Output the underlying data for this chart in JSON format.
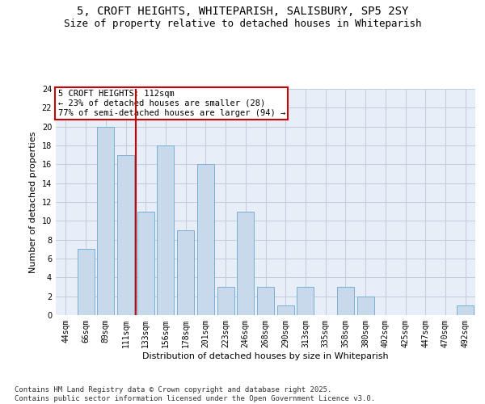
{
  "title": "5, CROFT HEIGHTS, WHITEPARISH, SALISBURY, SP5 2SY",
  "subtitle": "Size of property relative to detached houses in Whiteparish",
  "xlabel": "Distribution of detached houses by size in Whiteparish",
  "ylabel": "Number of detached properties",
  "categories": [
    "44sqm",
    "66sqm",
    "89sqm",
    "111sqm",
    "133sqm",
    "156sqm",
    "178sqm",
    "201sqm",
    "223sqm",
    "246sqm",
    "268sqm",
    "290sqm",
    "313sqm",
    "335sqm",
    "358sqm",
    "380sqm",
    "402sqm",
    "425sqm",
    "447sqm",
    "470sqm",
    "492sqm"
  ],
  "values": [
    0,
    7,
    20,
    17,
    11,
    18,
    9,
    16,
    3,
    11,
    3,
    1,
    3,
    0,
    3,
    2,
    0,
    0,
    0,
    0,
    1
  ],
  "bar_color": "#c8d9ec",
  "bar_edge_color": "#7aafd4",
  "grid_color": "#c0ccdd",
  "background_color": "#e8eef8",
  "annotation_box_text": "5 CROFT HEIGHTS: 112sqm\n← 23% of detached houses are smaller (28)\n77% of semi-detached houses are larger (94) →",
  "annotation_box_color": "#cc0000",
  "redline_x": 3.5,
  "ylim": [
    0,
    24
  ],
  "yticks": [
    0,
    2,
    4,
    6,
    8,
    10,
    12,
    14,
    16,
    18,
    20,
    22,
    24
  ],
  "footnote": "Contains HM Land Registry data © Crown copyright and database right 2025.\nContains public sector information licensed under the Open Government Licence v3.0.",
  "title_fontsize": 10,
  "subtitle_fontsize": 9,
  "axis_label_fontsize": 8,
  "tick_fontsize": 7,
  "annotation_fontsize": 7.5,
  "footnote_fontsize": 6.5
}
